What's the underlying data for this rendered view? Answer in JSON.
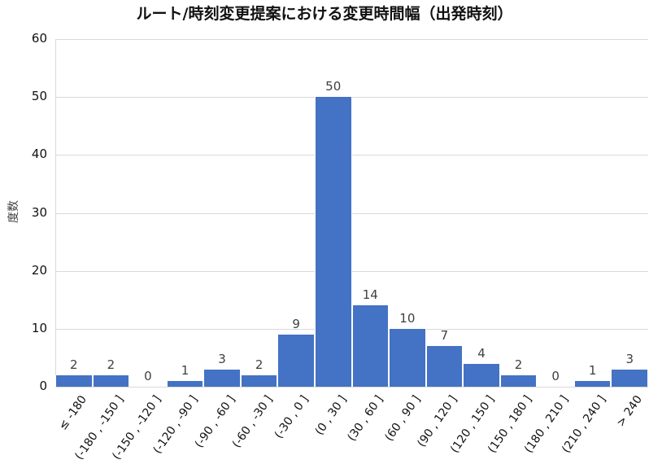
{
  "chart_data": {
    "type": "bar",
    "title": "ルート/時刻変更提案における変更時間幅（出発時刻）",
    "xlabel": "",
    "ylabel": "度数",
    "ylim": [
      0,
      60
    ],
    "yticks": [
      0,
      10,
      20,
      30,
      40,
      50,
      60
    ],
    "grid": true,
    "legend": "none",
    "bar_color": "#4472c4",
    "categories": [
      "≤ -180",
      "(-180 , -150 ]",
      "(-150 , -120 ]",
      "(-120 , -90 ]",
      "(-90 , -60 ]",
      "(-60 , -30 ]",
      "(-30 , 0 ]",
      "(0 , 30 ]",
      "(30 , 60 ]",
      "(60 , 90 ]",
      "(90 , 120 ]",
      "(120 , 150 ]",
      "(150 , 180 ]",
      "(180 , 210 ]",
      "(210 , 240 ]",
      "> 240"
    ],
    "values": [
      2,
      2,
      0,
      1,
      3,
      2,
      9,
      50,
      14,
      10,
      7,
      4,
      2,
      0,
      1,
      3
    ]
  }
}
